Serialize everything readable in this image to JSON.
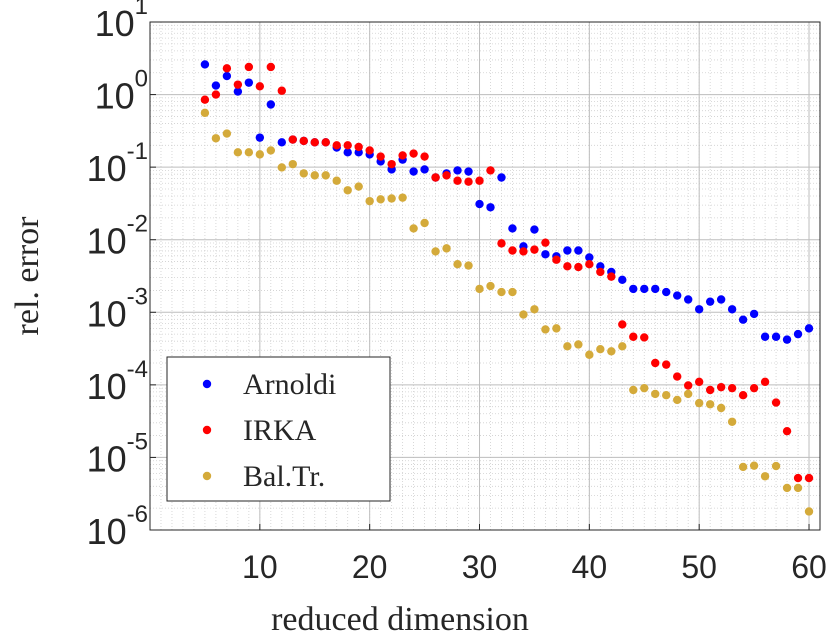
{
  "chart_data": {
    "type": "scatter",
    "xlabel": "reduced dimension",
    "ylabel": "rel. error",
    "log_y": true,
    "grid": true,
    "minor_grid": true,
    "legend": "lower left",
    "xlim": [
      0,
      61
    ],
    "ylim": [
      1e-06,
      10
    ],
    "xticks": [
      10,
      20,
      30,
      40,
      50,
      60
    ],
    "yticks": [
      {
        "value": 1e-06,
        "label": "10^-6"
      },
      {
        "value": 1e-05,
        "label": "10^-5"
      },
      {
        "value": 0.0001,
        "label": "10^-4"
      },
      {
        "value": 0.001,
        "label": "10^-3"
      },
      {
        "value": 0.01,
        "label": "10^-2"
      },
      {
        "value": 0.1,
        "label": "10^-1"
      },
      {
        "value": 1,
        "label": "10^0"
      },
      {
        "value": 10,
        "label": "10^1"
      }
    ],
    "x": [
      5,
      6,
      7,
      8,
      9,
      10,
      11,
      12,
      13,
      14,
      15,
      16,
      17,
      18,
      19,
      20,
      21,
      22,
      23,
      24,
      25,
      26,
      27,
      28,
      29,
      30,
      31,
      32,
      33,
      34,
      35,
      36,
      37,
      38,
      39,
      40,
      41,
      42,
      43,
      44,
      45,
      46,
      47,
      48,
      49,
      50,
      51,
      52,
      53,
      54,
      55,
      56,
      57,
      58,
      59,
      60
    ],
    "series": [
      {
        "name": "Arnoldi",
        "color": "#0000ff",
        "values": [
          2.6,
          1.33,
          1.8,
          1.1,
          1.46,
          0.255,
          0.73,
          0.22,
          0.24,
          0.23,
          0.22,
          0.22,
          0.186,
          0.16,
          0.16,
          0.15,
          0.12,
          0.093,
          0.127,
          0.087,
          0.093,
          0.072,
          0.082,
          0.09,
          0.087,
          0.031,
          0.028,
          0.072,
          0.0143,
          0.0081,
          0.0138,
          0.0063,
          0.0059,
          0.0071,
          0.0071,
          0.0057,
          0.0043,
          0.0036,
          0.0028,
          0.0021,
          0.0021,
          0.0021,
          0.0019,
          0.0017,
          0.0015,
          0.0011,
          0.0014,
          0.0015,
          0.0011,
          0.00079,
          0.00095,
          0.00046,
          0.00046,
          0.00042,
          0.0005,
          0.0006
        ]
      },
      {
        "name": "IRKA",
        "color": "#ff0000",
        "values": [
          0.85,
          1.0,
          2.3,
          1.37,
          2.4,
          1.3,
          2.4,
          1.13,
          0.24,
          0.23,
          0.22,
          0.22,
          0.2,
          0.2,
          0.19,
          0.17,
          0.14,
          0.11,
          0.145,
          0.154,
          0.14,
          0.072,
          0.077,
          0.065,
          0.063,
          0.065,
          0.09,
          0.0089,
          0.0071,
          0.0069,
          0.0073,
          0.0091,
          0.0053,
          0.0043,
          0.0042,
          0.0046,
          0.0036,
          0.0031,
          0.00068,
          0.00046,
          0.00045,
          0.0002,
          0.00019,
          0.00013,
          9.8e-05,
          0.00011,
          8.5e-05,
          9.3e-05,
          9e-05,
          7.2e-05,
          9e-05,
          0.00011,
          5.7e-05,
          2.3e-05,
          5.2e-06,
          5.2e-06
        ]
      },
      {
        "name": "Bal.Tr.",
        "color": "#d4aa3a",
        "values": [
          0.56,
          0.25,
          0.29,
          0.16,
          0.16,
          0.15,
          0.17,
          0.099,
          0.11,
          0.082,
          0.077,
          0.077,
          0.065,
          0.048,
          0.054,
          0.034,
          0.036,
          0.037,
          0.038,
          0.0143,
          0.017,
          0.0069,
          0.0076,
          0.0046,
          0.0044,
          0.0021,
          0.0023,
          0.0019,
          0.0019,
          0.00093,
          0.0011,
          0.00058,
          0.0006,
          0.00034,
          0.00036,
          0.00026,
          0.00031,
          0.00029,
          0.00034,
          8.5e-05,
          9e-05,
          7.5e-05,
          7.2e-05,
          6.2e-05,
          7.5e-05,
          5.6e-05,
          5.4e-05,
          4.8e-05,
          3.1e-05,
          7.4e-06,
          7.7e-06,
          5.5e-06,
          7.6e-06,
          3.8e-06,
          3.8e-06,
          1.8e-06
        ]
      }
    ]
  }
}
